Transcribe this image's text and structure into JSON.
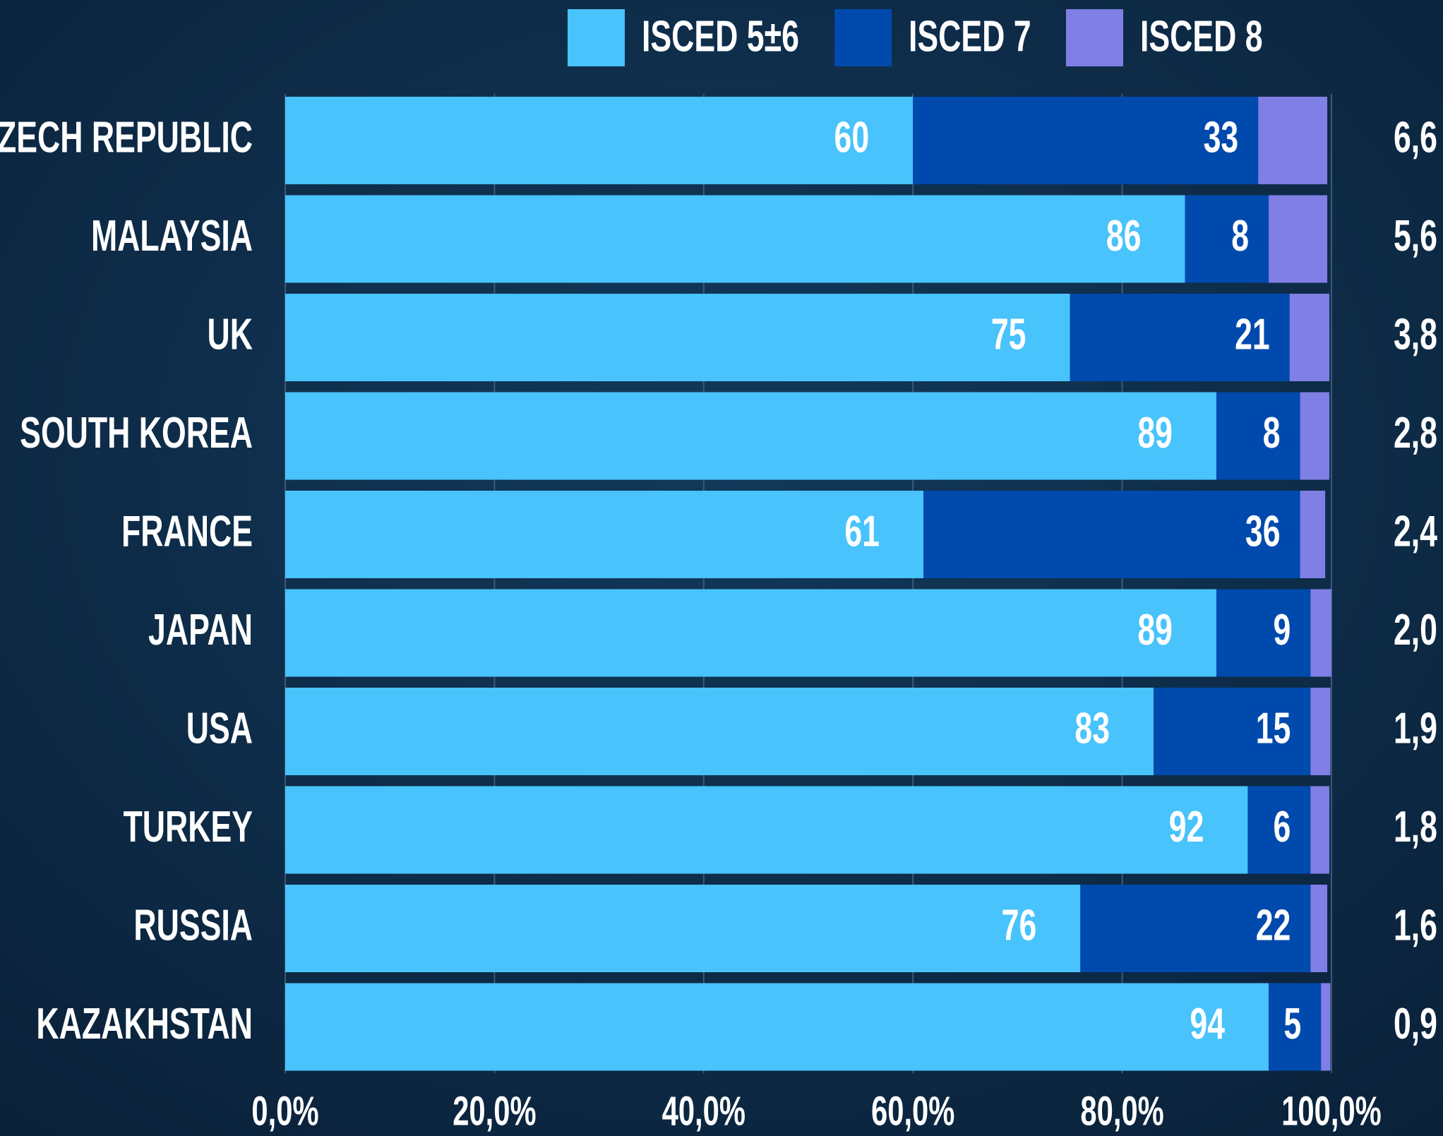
{
  "chart_data": {
    "type": "stacked_bar_horizontal",
    "categories": [
      "CZECH REPUBLIC",
      "MALAYSIA",
      "UK",
      "SOUTH KOREA",
      "FRANCE",
      "JAPAN",
      "USA",
      "TURKEY",
      "RUSSIA",
      "KAZAKHSTAN"
    ],
    "series": [
      {
        "name": "ISCED 5±6",
        "color": "#48c3fb",
        "values": [
          60,
          86,
          75,
          89,
          61,
          89,
          83,
          92,
          76,
          94
        ]
      },
      {
        "name": "ISCED 7",
        "color": "#004aad",
        "values": [
          33,
          8,
          21,
          8,
          36,
          9,
          15,
          6,
          22,
          5
        ]
      },
      {
        "name": "ISCED 8",
        "color": "#7f7fe6",
        "values": [
          6.6,
          5.6,
          3.8,
          2.8,
          2.4,
          2.0,
          1.9,
          1.8,
          1.6,
          0.9
        ],
        "value_labels": [
          "6,6",
          "5,6",
          "3,8",
          "2,8",
          "2,4",
          "2,0",
          "1,9",
          "1,8",
          "1,6",
          "0,9"
        ]
      }
    ],
    "xlim": [
      0,
      100
    ],
    "xticks": [
      {
        "value": 0,
        "label": "0,0%"
      },
      {
        "value": 20,
        "label": "20,0%"
      },
      {
        "value": 40,
        "label": "40,0%"
      },
      {
        "value": 60,
        "label": "60,0%"
      },
      {
        "value": 80,
        "label": "80,0%"
      },
      {
        "value": 100,
        "label": "100,0%"
      }
    ],
    "grid": true,
    "legend": "top"
  }
}
